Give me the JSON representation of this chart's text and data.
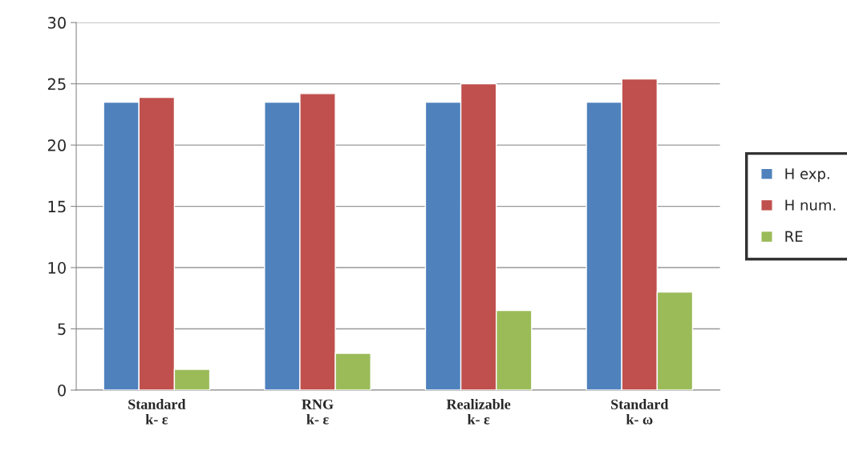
{
  "chart_data": {
    "type": "bar",
    "categories": [
      "Standard\nk- ε",
      "RNG\nk- ε",
      "Realizable\nk- ε",
      "Standard\nk- ω"
    ],
    "series": [
      {
        "name": "H exp.",
        "color": "#4f81bd",
        "values": [
          23.5,
          23.5,
          23.5,
          23.5
        ]
      },
      {
        "name": "H num.",
        "color": "#c0504d",
        "values": [
          23.9,
          24.2,
          25.0,
          25.4
        ]
      },
      {
        "name": "RE",
        "color": "#9bbb59",
        "values": [
          1.7,
          3.0,
          6.5,
          8.0
        ]
      }
    ],
    "ylim": [
      0,
      30
    ],
    "yticks": [
      0,
      5,
      10,
      15,
      20,
      25,
      30
    ],
    "grid": "y",
    "legend": "right"
  }
}
